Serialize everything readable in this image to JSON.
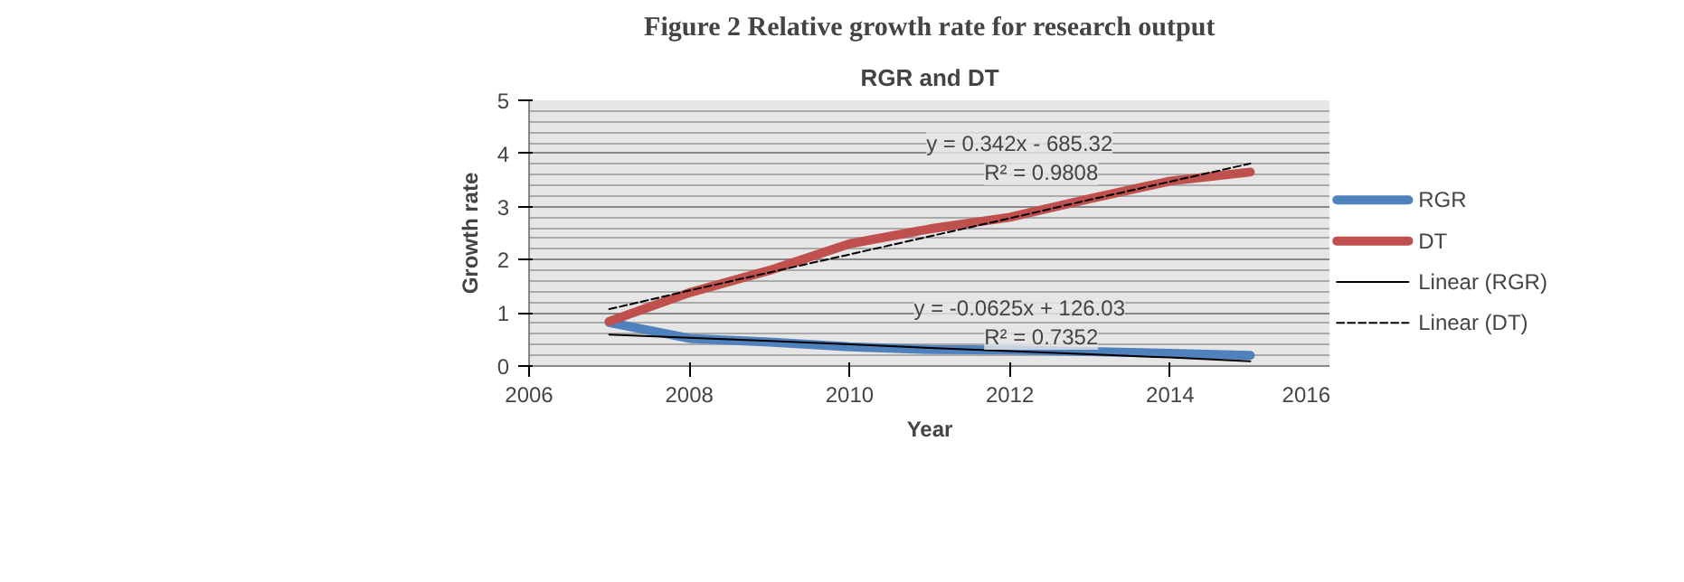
{
  "chart_data": {
    "type": "line",
    "title": "RGR and DT",
    "xlabel": "Year",
    "ylabel": "Growth rate",
    "x": [
      2007,
      2008,
      2009,
      2010,
      2011,
      2012,
      2013,
      2014,
      2015
    ],
    "series": [
      {
        "name": "RGR",
        "color": "#4f81bd",
        "values": [
          0.82,
          0.52,
          0.45,
          0.36,
          0.31,
          0.3,
          0.27,
          0.24,
          0.2
        ]
      },
      {
        "name": "DT",
        "color": "#c0504d",
        "values": [
          0.84,
          1.38,
          1.8,
          2.3,
          2.58,
          2.8,
          3.15,
          3.48,
          3.65
        ]
      },
      {
        "name": "Linear (RGR)",
        "color": "#000000",
        "values": [
          0.59,
          0.53,
          0.47,
          0.41,
          0.34,
          0.28,
          0.22,
          0.16,
          0.09
        ],
        "line_style": "solid"
      },
      {
        "name": "Linear (DT)",
        "color": "#000000",
        "values": [
          1.07,
          1.42,
          1.76,
          2.1,
          2.44,
          2.78,
          3.13,
          3.47,
          3.81
        ],
        "line_style": "dashed"
      }
    ],
    "xlim": [
      2006,
      2016
    ],
    "xticks": [
      2006,
      2008,
      2010,
      2012,
      2014,
      2016
    ],
    "ylim": [
      0,
      5
    ],
    "yticks": [
      0,
      1,
      2,
      3,
      4,
      5
    ],
    "grid": "y",
    "legend": "right",
    "annotations": [
      "Figure 2 Relative growth rate for research output",
      "y = -0.0625x + 126.03",
      "R² = 0.7352",
      "y = 0.342x - 685.32",
      "R² = 0.9808"
    ]
  }
}
